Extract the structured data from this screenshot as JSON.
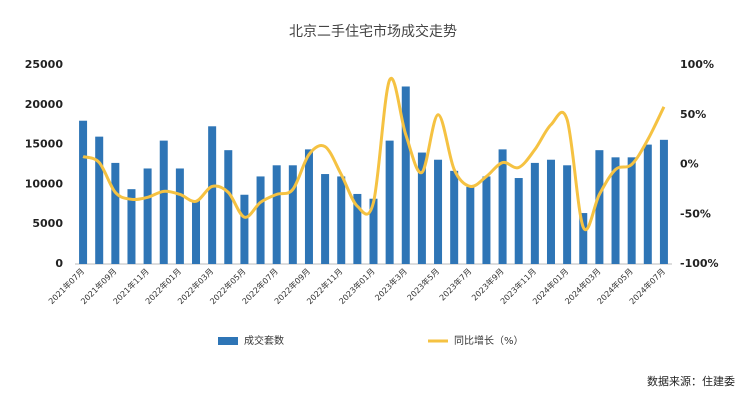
{
  "chart_data": {
    "type": "bar_line",
    "title": "北京二手住宅市场成交走势",
    "source": "数据来源：住建委",
    "categories": [
      "2021年07月",
      null,
      "2021年09月",
      null,
      "2021年11月",
      null,
      "2022年01月",
      null,
      "2022年03月",
      null,
      "2022年05月",
      null,
      "2022年07月",
      null,
      "2022年09月",
      null,
      "2022年11月",
      null,
      "2023年01月",
      null,
      "2023年3月",
      null,
      "2023年5月",
      null,
      "2023年7月",
      null,
      "2023年9月",
      null,
      "2023年11月",
      null,
      "2024年01月",
      null,
      "2024年03月",
      null,
      "2024年05月",
      null,
      "2024年07月"
    ],
    "series": [
      {
        "name": "成交套数",
        "type": "bar",
        "color": "#2e75b6",
        "values": [
          18000,
          16000,
          12700,
          9400,
          12000,
          15500,
          12000,
          8000,
          17300,
          14300,
          8700,
          11000,
          12400,
          12400,
          14400,
          11300,
          11000,
          8800,
          8200,
          15500,
          22300,
          14000,
          13100,
          11700,
          9700,
          11000,
          14400,
          10800,
          12700,
          13100,
          12400,
          6400,
          14300,
          13400,
          13400,
          15000,
          15600
        ]
      },
      {
        "name": "同比增长（%）",
        "type": "line",
        "axis": "y2",
        "color": "#f5c242",
        "values": [
          8,
          2,
          -28,
          -35,
          -33,
          -27,
          -30,
          -37,
          -22,
          -28,
          -53,
          -38,
          -30,
          -25,
          10,
          18,
          -10,
          -42,
          -38,
          85,
          30,
          -8,
          50,
          -5,
          -22,
          -12,
          2,
          -3,
          15,
          40,
          45,
          -63,
          -30,
          -5,
          0,
          25,
          58
        ]
      }
    ],
    "ylim": [
      0,
      25000
    ],
    "yticks": [
      0,
      5000,
      10000,
      15000,
      20000,
      25000
    ],
    "y2lim": [
      -100,
      100
    ],
    "y2ticks": [
      {
        "value": -100,
        "label": "-100%"
      },
      {
        "value": -50,
        "label": "-50%"
      },
      {
        "value": 0,
        "label": "0%"
      },
      {
        "value": 50,
        "label": "50%"
      },
      {
        "value": 100,
        "label": "100%"
      }
    ],
    "legend": "bottom"
  }
}
